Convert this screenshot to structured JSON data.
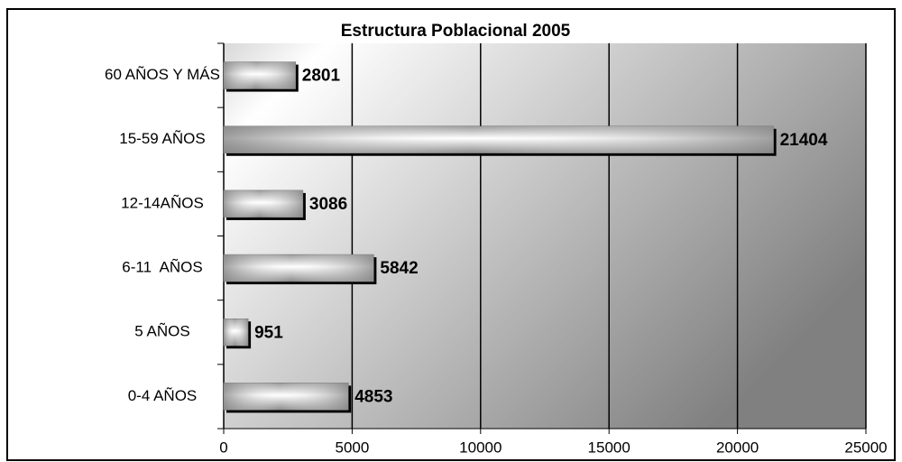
{
  "chart_data": {
    "type": "barh",
    "title": "Estructura Poblacional 2005",
    "categories": [
      "60 AÑOS Y MÁS",
      "15-59 AÑOS",
      "12-14AÑOS",
      "6-11  AÑOS",
      "5 AÑOS",
      "0-4 AÑOS"
    ],
    "values": [
      2801,
      21404,
      3086,
      5842,
      951,
      4853
    ],
    "xlim": [
      0,
      25000
    ],
    "xticks": [
      0,
      5000,
      10000,
      15000,
      20000,
      25000
    ],
    "grid": true
  }
}
